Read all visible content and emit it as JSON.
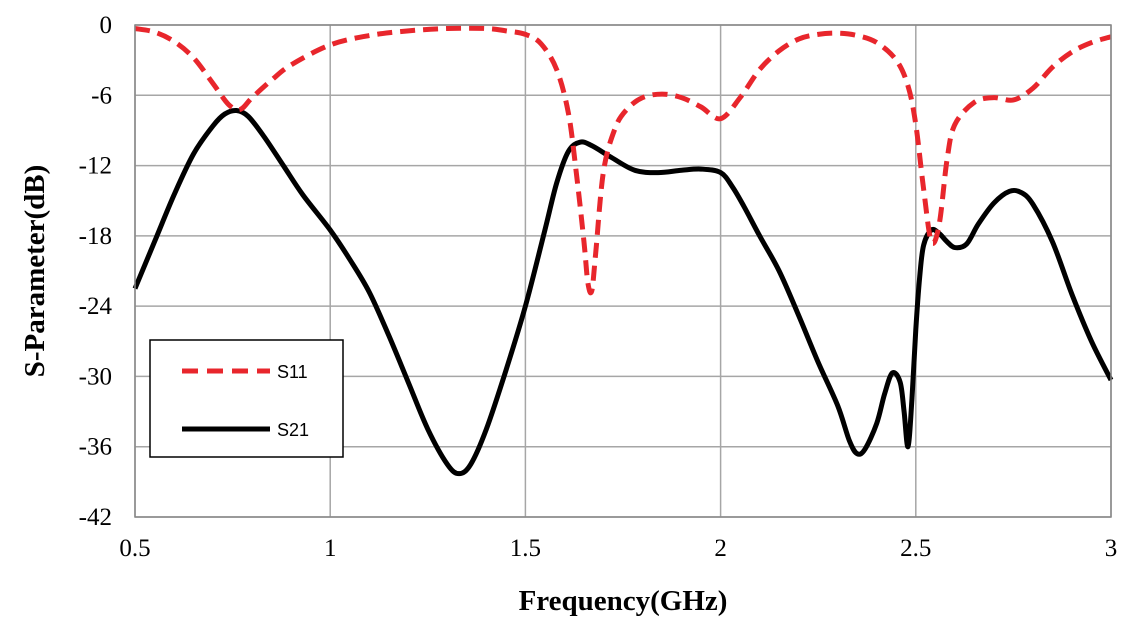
{
  "chart_data": {
    "type": "line",
    "xlabel": "Frequency(GHz)",
    "ylabel": "S-Parameter(dB)",
    "xlim": [
      0.5,
      3
    ],
    "ylim": [
      -42,
      0
    ],
    "xticks": [
      0.5,
      1,
      1.5,
      2,
      2.5,
      3
    ],
    "xtick_labels": [
      "0.5",
      "1",
      "1.5",
      "2",
      "2.5",
      "3"
    ],
    "yticks": [
      0,
      -6,
      -12,
      -18,
      -24,
      -30,
      -36,
      -42
    ],
    "ytick_labels": [
      "0",
      "-6",
      "-12",
      "-18",
      "-24",
      "-30",
      "-36",
      "-42"
    ],
    "grid": true,
    "legend_position": "bottom-left",
    "series": [
      {
        "name": "S11",
        "color": "#e8262c",
        "style": "dashed",
        "x": [
          0.5,
          0.55,
          0.6,
          0.65,
          0.7,
          0.74,
          0.77,
          0.8,
          0.85,
          0.9,
          1.0,
          1.1,
          1.2,
          1.3,
          1.4,
          1.45,
          1.5,
          1.54,
          1.58,
          1.61,
          1.63,
          1.65,
          1.66,
          1.67,
          1.68,
          1.7,
          1.73,
          1.76,
          1.8,
          1.85,
          1.9,
          1.95,
          2.0,
          2.05,
          2.1,
          2.15,
          2.2,
          2.25,
          2.3,
          2.35,
          2.4,
          2.45,
          2.48,
          2.5,
          2.52,
          2.54,
          2.56,
          2.58,
          2.6,
          2.65,
          2.7,
          2.75,
          2.8,
          2.85,
          2.9,
          2.95,
          3.0
        ],
        "y": [
          -0.3,
          -0.6,
          -1.4,
          -2.8,
          -5.0,
          -6.8,
          -7.2,
          -6.2,
          -4.7,
          -3.4,
          -1.7,
          -0.9,
          -0.5,
          -0.3,
          -0.3,
          -0.5,
          -0.8,
          -1.6,
          -3.8,
          -7.5,
          -12.5,
          -18.5,
          -22.0,
          -22.7,
          -19.5,
          -12.5,
          -8.8,
          -7.2,
          -6.2,
          -5.9,
          -6.2,
          -7.0,
          -8.0,
          -6.2,
          -3.8,
          -2.2,
          -1.2,
          -0.8,
          -0.7,
          -0.9,
          -1.5,
          -3.0,
          -5.2,
          -8.5,
          -14.0,
          -18.5,
          -17.0,
          -11.5,
          -8.5,
          -6.6,
          -6.2,
          -6.4,
          -5.4,
          -3.6,
          -2.3,
          -1.5,
          -1.0
        ]
      },
      {
        "name": "S21",
        "color": "#000000",
        "style": "solid",
        "x": [
          0.5,
          0.55,
          0.6,
          0.65,
          0.7,
          0.73,
          0.76,
          0.79,
          0.83,
          0.88,
          0.93,
          1.0,
          1.05,
          1.1,
          1.15,
          1.2,
          1.25,
          1.3,
          1.33,
          1.36,
          1.4,
          1.45,
          1.5,
          1.55,
          1.58,
          1.61,
          1.64,
          1.67,
          1.72,
          1.78,
          1.84,
          1.9,
          1.95,
          2.0,
          2.03,
          2.06,
          2.1,
          2.15,
          2.2,
          2.25,
          2.3,
          2.33,
          2.35,
          2.37,
          2.4,
          2.42,
          2.44,
          2.46,
          2.47,
          2.48,
          2.49,
          2.5,
          2.51,
          2.52,
          2.54,
          2.56,
          2.58,
          2.6,
          2.63,
          2.66,
          2.7,
          2.74,
          2.77,
          2.8,
          2.85,
          2.9,
          2.95,
          3.0
        ],
        "y": [
          -22.5,
          -18.5,
          -14.5,
          -11.0,
          -8.6,
          -7.6,
          -7.3,
          -7.8,
          -9.5,
          -12.0,
          -14.5,
          -17.5,
          -20.0,
          -22.8,
          -26.5,
          -30.5,
          -34.5,
          -37.5,
          -38.3,
          -37.5,
          -34.5,
          -29.5,
          -24.0,
          -17.5,
          -13.5,
          -10.8,
          -10.0,
          -10.3,
          -11.3,
          -12.4,
          -12.6,
          -12.4,
          -12.3,
          -12.6,
          -13.8,
          -15.5,
          -18.0,
          -21.0,
          -24.8,
          -28.8,
          -32.5,
          -35.5,
          -36.6,
          -36.2,
          -34.0,
          -31.5,
          -29.7,
          -30.5,
          -33.0,
          -36.0,
          -32.0,
          -26.0,
          -21.5,
          -18.8,
          -17.5,
          -17.8,
          -18.5,
          -19.0,
          -18.7,
          -17.0,
          -15.2,
          -14.2,
          -14.3,
          -15.3,
          -18.5,
          -23.0,
          -27.0,
          -30.3
        ]
      }
    ]
  }
}
